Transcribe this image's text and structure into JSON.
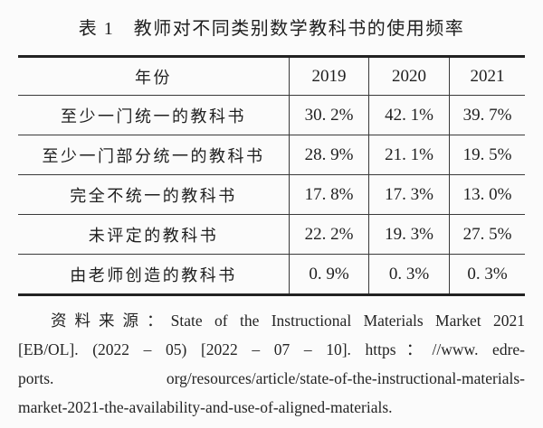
{
  "page": {
    "title": "表 1　教师对不同类别数学教科书的使用频率"
  },
  "table": {
    "header": [
      "年份",
      "2019",
      "2020",
      "2021"
    ],
    "rows": [
      {
        "label": "至少一门统一的教科书",
        "values": [
          "30. 2%",
          "42. 1%",
          "39. 7%"
        ]
      },
      {
        "label": "至少一门部分统一的教科书",
        "values": [
          "28. 9%",
          "21. 1%",
          "19. 5%"
        ]
      },
      {
        "label": "完全不统一的教科书",
        "values": [
          "17. 8%",
          "17. 3%",
          "13. 0%"
        ]
      },
      {
        "label": "未评定的教科书",
        "values": [
          "22. 2%",
          "19. 3%",
          "27. 5%"
        ]
      },
      {
        "label": "由老师创造的教科书",
        "values": [
          "0. 9%",
          "0. 3%",
          "0. 3%"
        ]
      }
    ]
  },
  "source": {
    "lines": [
      "资料来源：State of the Instructional Materials Market 2021",
      "[EB/OL]. (2022 – 05) [2022 – 07 – 10]. https：//www. edre-",
      "ports. org/resources/article/state-of-the-instructional-materials-",
      "market-2021-the-availability-and-use-of-aligned-materials."
    ]
  },
  "colors": {
    "background": "#fbfbfb",
    "text": "#1f1f1f",
    "rule": "#3a3a3a",
    "heavy_rule": "#222222"
  }
}
